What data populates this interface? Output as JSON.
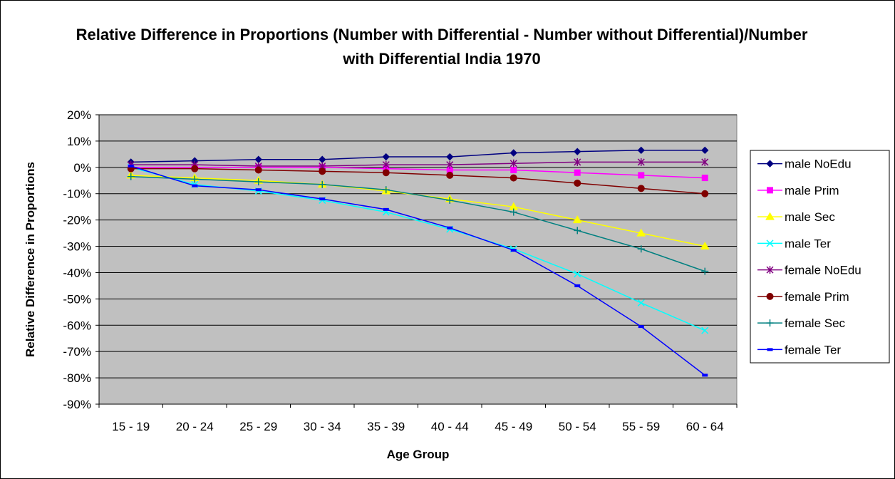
{
  "chart_data": {
    "type": "line",
    "title": "Relative Difference in Proportions (Number with Differential - Number without Differential)/Number with Differential India 1970",
    "xlabel": "Age Group",
    "ylabel": "Relative Difference in Proportions",
    "categories": [
      "15 - 19",
      "20 - 24",
      "25 - 29",
      "30 - 34",
      "35 - 39",
      "40 - 44",
      "45 - 49",
      "50 - 54",
      "55 - 59",
      "60 - 64"
    ],
    "ylim": [
      -90,
      20
    ],
    "yticks": [
      20,
      10,
      0,
      -10,
      -20,
      -30,
      -40,
      -50,
      -60,
      -70,
      -80,
      -90
    ],
    "ytick_labels": [
      "20%",
      "10%",
      "0%",
      "-10%",
      "-20%",
      "-30%",
      "-40%",
      "-50%",
      "-60%",
      "-70%",
      "-80%",
      "-90%"
    ],
    "grid": true,
    "plot_background": "#c0c0c0",
    "legend_position": "right",
    "series": [
      {
        "name": "male NoEdu",
        "color": "#000080",
        "marker": "diamond",
        "values": [
          2,
          2.5,
          3,
          3,
          4,
          4,
          5.5,
          6,
          6.5,
          6.5
        ]
      },
      {
        "name": "male Prim",
        "color": "#ff00ff",
        "marker": "square",
        "values": [
          0,
          0,
          0,
          0,
          -0.5,
          -1,
          -1,
          -2,
          -3,
          -4
        ]
      },
      {
        "name": "male Sec",
        "color": "#ffff00",
        "marker": "triangle",
        "values": [
          -3,
          -4,
          -5,
          -6.5,
          -9,
          -12,
          -15,
          -20,
          -25,
          -30
        ]
      },
      {
        "name": "male Ter",
        "color": "#00ffff",
        "marker": "x",
        "values": [
          0,
          -6.5,
          -9,
          -12.5,
          -17,
          -23.5,
          -31,
          -40.5,
          -51.5,
          -62
        ]
      },
      {
        "name": "female NoEdu",
        "color": "#800080",
        "marker": "star",
        "values": [
          1,
          1,
          0.5,
          0.5,
          1,
          1,
          1.5,
          2,
          2,
          2
        ]
      },
      {
        "name": "female Prim",
        "color": "#800000",
        "marker": "circle",
        "values": [
          -0.5,
          -0.5,
          -1,
          -1.5,
          -2,
          -3,
          -4,
          -6,
          -8,
          -10
        ]
      },
      {
        "name": "female Sec",
        "color": "#008080",
        "marker": "plus",
        "values": [
          -3.5,
          -4.5,
          -5.5,
          -6.5,
          -8.5,
          -12.5,
          -17,
          -24,
          -31,
          -39.5
        ]
      },
      {
        "name": "female Ter",
        "color": "#0000ff",
        "marker": "dash",
        "values": [
          0.5,
          -7,
          -8.5,
          -12,
          -16,
          -23,
          -31.5,
          -45,
          -60.5,
          -79
        ]
      }
    ]
  }
}
